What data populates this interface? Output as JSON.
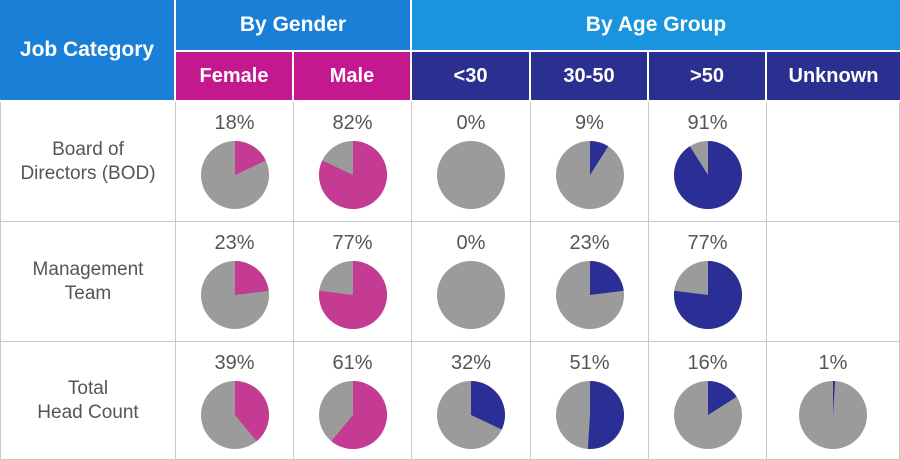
{
  "colors": {
    "gender_header": "#1a7fd6",
    "gender_sub": "#c4198e",
    "age_header": "#1a95dd",
    "age_sub": "#2b2f8f",
    "rest": "#9b9b9b",
    "female_male": "#c53a93",
    "age": "#2b2e95"
  },
  "headers": {
    "job_category": "Job Category",
    "by_gender": "By Gender",
    "by_age_group": "By Age Group",
    "columns": [
      "Female",
      "Male",
      "<30",
      "30-50",
      ">50",
      "Unknown"
    ]
  },
  "chart_data": {
    "type": "pie",
    "title": "",
    "categories": [
      "Female",
      "Male",
      "<30",
      "30-50",
      ">50",
      "Unknown"
    ],
    "rows": [
      {
        "label_lines": [
          "Board of",
          "Directors (BOD)"
        ],
        "values": [
          18,
          82,
          0,
          9,
          91,
          null
        ],
        "labels": [
          "18%",
          "82%",
          "0%",
          "9%",
          "91%",
          ""
        ]
      },
      {
        "label_lines": [
          "Management",
          "Team"
        ],
        "values": [
          23,
          77,
          0,
          23,
          77,
          null
        ],
        "labels": [
          "23%",
          "77%",
          "0%",
          "23%",
          "77%",
          ""
        ]
      },
      {
        "label_lines": [
          "Total",
          "Head Count"
        ],
        "values": [
          39,
          61,
          32,
          51,
          16,
          1
        ],
        "labels": [
          "39%",
          "61%",
          "32%",
          "51%",
          "16%",
          "1%"
        ]
      }
    ]
  }
}
